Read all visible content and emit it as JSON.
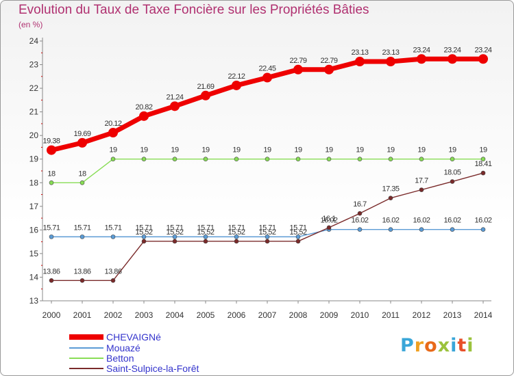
{
  "title": "Evolution du Taux de Taxe Foncière sur les Propriétés Bâties",
  "unit_label": "(en %)",
  "logo": {
    "text": "Proxiti",
    "colors": [
      "#3aa6d8",
      "#f0a020",
      "#e86a1a",
      "#9bc23c",
      "#3aa6d8",
      "#e8502a",
      "#9bc23c"
    ]
  },
  "chart_data": {
    "type": "line",
    "title": "Evolution du Taux de Taxe Foncière sur les Propriétés Bâties",
    "ylabel": "(en %)",
    "xlabel": "",
    "x": [
      "2000",
      "2001",
      "2002",
      "2003",
      "2004",
      "2005",
      "2006",
      "2007",
      "2008",
      "2009",
      "2010",
      "2011",
      "2012",
      "2013",
      "2014"
    ],
    "ylim": [
      13,
      24
    ],
    "yticks": [
      "13",
      "14",
      "15",
      "16",
      "17",
      "18",
      "19",
      "20",
      "21",
      "22",
      "23",
      "24"
    ],
    "grid": "none",
    "legend_position": "bottom-left",
    "series": [
      {
        "name": "CHEVAIGNé",
        "color": "#ee0000",
        "emphasis": true,
        "values": [
          19.38,
          19.69,
          20.12,
          20.82,
          21.24,
          21.69,
          22.12,
          22.45,
          22.79,
          22.79,
          23.13,
          23.13,
          23.24,
          23.24,
          23.24
        ],
        "labels": [
          "19.38",
          "19.69",
          "20.12",
          "20.82",
          "21.24",
          "21.69",
          "22.12",
          "22.45",
          "22.79",
          "22.79",
          "23.13",
          "23.13",
          "23.24",
          "23.24",
          "23.24"
        ]
      },
      {
        "name": "Mouazé",
        "color": "#5b9bd5",
        "emphasis": false,
        "values": [
          15.71,
          15.71,
          15.71,
          15.71,
          15.71,
          15.71,
          15.71,
          15.71,
          15.71,
          16.02,
          16.02,
          16.02,
          16.02,
          16.02,
          16.02
        ],
        "labels": [
          "15.71",
          "15.71",
          "15.71",
          "15.71",
          "15.71",
          "15.71",
          "15.71",
          "15.71",
          "15.71",
          "16.02",
          "16.02",
          "16.02",
          "16.02",
          "16.02",
          "16.02"
        ]
      },
      {
        "name": "Betton",
        "color": "#88dd55",
        "emphasis": false,
        "values": [
          18,
          18,
          19,
          19,
          19,
          19,
          19,
          19,
          19,
          19,
          19,
          19,
          19,
          19,
          19
        ],
        "labels": [
          "18",
          "18",
          "19",
          "19",
          "19",
          "19",
          "19",
          "19",
          "19",
          "19",
          "19",
          "19",
          "19",
          "19",
          "19"
        ]
      },
      {
        "name": "Saint-Sulpice-la-Forêt",
        "color": "#7a2a2a",
        "emphasis": false,
        "values": [
          13.86,
          13.86,
          13.86,
          15.52,
          15.52,
          15.52,
          15.52,
          15.52,
          15.52,
          16.1,
          16.7,
          17.35,
          17.7,
          18.05,
          18.41
        ],
        "labels": [
          "13.86",
          "13.86",
          "13.86",
          "15.52",
          "15.52",
          "15.52",
          "15.52",
          "15.52",
          "15.52",
          "16.1",
          "16.7",
          "17.35",
          "17.7",
          "18.05",
          "18.41"
        ]
      }
    ]
  }
}
